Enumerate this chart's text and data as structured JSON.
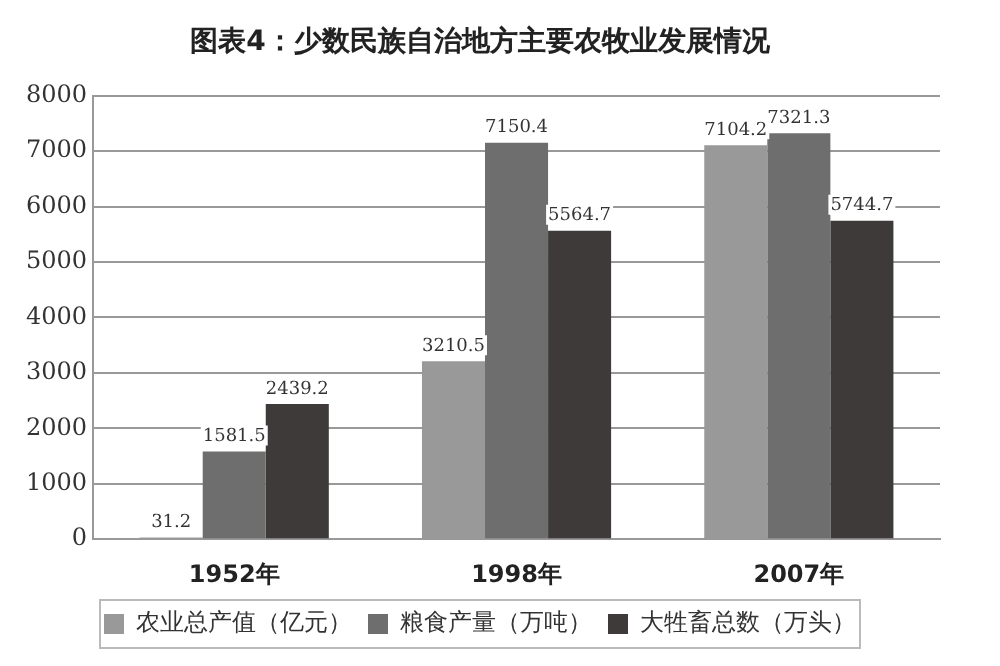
{
  "chart_data": {
    "type": "bar",
    "title": "图表4：少数民族自治地方主要农牧业发展情况",
    "categories": [
      "1952年",
      "1998年",
      "2007年"
    ],
    "series": [
      {
        "name": "农业总产值（亿元）",
        "color": "#999999",
        "values": [
          31.2,
          3210.5,
          7104.2
        ]
      },
      {
        "name": "粮食产量（万吨）",
        "color": "#6e6e6e",
        "values": [
          1581.5,
          7150.4,
          7321.3
        ]
      },
      {
        "name": "大牲畜总数（万头）",
        "color": "#3e3a3a",
        "values": [
          2439.2,
          5564.7,
          5744.7
        ]
      }
    ],
    "ylim": [
      0,
      8000
    ],
    "yticks": [
      0,
      1000,
      2000,
      3000,
      4000,
      5000,
      6000,
      7000,
      8000
    ],
    "grid": "y",
    "legend": "bottom",
    "data_labels": true
  }
}
